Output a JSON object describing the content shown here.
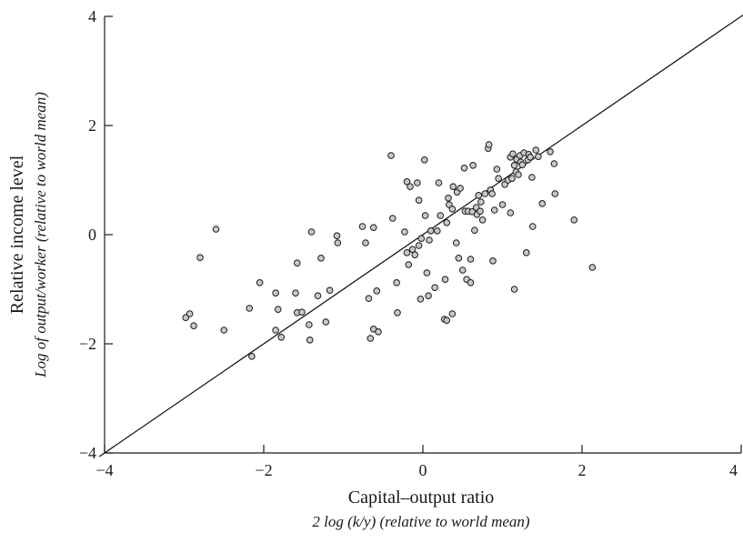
{
  "chart_data": {
    "type": "scatter",
    "xlabel": "Capital–output ratio",
    "xlabel_sub": "2 log (k/y) (relative to world mean)",
    "ylabel": "Relative income level",
    "ylabel_sub": "Log of output/worker (relative to world mean)",
    "xlim": [
      -4,
      4
    ],
    "ylim": [
      -4,
      4
    ],
    "x_ticks": [
      -4,
      -2,
      0,
      2,
      4
    ],
    "y_ticks": [
      -4,
      -2,
      0,
      2,
      4
    ],
    "x_tick_labels": [
      "−4",
      "−2",
      "0",
      "2",
      "4"
    ],
    "y_tick_labels": [
      "−4",
      "−2",
      "0",
      "2",
      "4"
    ],
    "grid": false,
    "reference_line": {
      "slope": 1,
      "intercept": 0
    },
    "points": [
      {
        "x": -2.98,
        "y": -1.52
      },
      {
        "x": -2.93,
        "y": -1.45
      },
      {
        "x": -2.88,
        "y": -1.67
      },
      {
        "x": -2.8,
        "y": -0.42
      },
      {
        "x": -2.6,
        "y": 0.1
      },
      {
        "x": -2.5,
        "y": -1.75
      },
      {
        "x": -2.18,
        "y": -1.35
      },
      {
        "x": -2.15,
        "y": -2.23
      },
      {
        "x": -2.05,
        "y": -0.88
      },
      {
        "x": -1.85,
        "y": -1.07
      },
      {
        "x": -1.85,
        "y": -1.75
      },
      {
        "x": -1.82,
        "y": -1.37
      },
      {
        "x": -1.78,
        "y": -1.88
      },
      {
        "x": -1.6,
        "y": -1.07
      },
      {
        "x": -1.58,
        "y": -0.52
      },
      {
        "x": -1.58,
        "y": -1.43
      },
      {
        "x": -1.52,
        "y": -1.42
      },
      {
        "x": -1.43,
        "y": -1.65
      },
      {
        "x": -1.42,
        "y": -1.93
      },
      {
        "x": -1.4,
        "y": 0.05
      },
      {
        "x": -1.32,
        "y": -1.12
      },
      {
        "x": -1.28,
        "y": -0.43
      },
      {
        "x": -1.22,
        "y": -1.6
      },
      {
        "x": -1.17,
        "y": -1.02
      },
      {
        "x": -1.08,
        "y": -0.02
      },
      {
        "x": -1.07,
        "y": -0.15
      },
      {
        "x": -0.76,
        "y": 0.15
      },
      {
        "x": -0.72,
        "y": -0.15
      },
      {
        "x": -0.68,
        "y": -1.17
      },
      {
        "x": -0.66,
        "y": -1.9
      },
      {
        "x": -0.62,
        "y": 0.13
      },
      {
        "x": -0.62,
        "y": -1.73
      },
      {
        "x": -0.58,
        "y": -1.03
      },
      {
        "x": -0.56,
        "y": -1.78
      },
      {
        "x": -0.4,
        "y": 1.45
      },
      {
        "x": -0.38,
        "y": 0.3
      },
      {
        "x": -0.33,
        "y": -0.88
      },
      {
        "x": -0.32,
        "y": -1.43
      },
      {
        "x": -0.23,
        "y": 0.05
      },
      {
        "x": -0.2,
        "y": 0.97
      },
      {
        "x": -0.2,
        "y": -0.33
      },
      {
        "x": -0.18,
        "y": -0.55
      },
      {
        "x": -0.16,
        "y": 0.88
      },
      {
        "x": -0.13,
        "y": -0.27
      },
      {
        "x": -0.1,
        "y": -0.37
      },
      {
        "x": -0.07,
        "y": 0.95
      },
      {
        "x": -0.05,
        "y": 0.63
      },
      {
        "x": -0.05,
        "y": -0.2
      },
      {
        "x": -0.03,
        "y": -1.18
      },
      {
        "x": -0.02,
        "y": -0.07
      },
      {
        "x": 0.02,
        "y": 1.37
      },
      {
        "x": 0.03,
        "y": 0.35
      },
      {
        "x": 0.05,
        "y": -0.7
      },
      {
        "x": 0.07,
        "y": -1.12
      },
      {
        "x": 0.08,
        "y": -0.1
      },
      {
        "x": 0.1,
        "y": 0.07
      },
      {
        "x": 0.15,
        "y": -0.97
      },
      {
        "x": 0.18,
        "y": 0.07
      },
      {
        "x": 0.2,
        "y": 0.95
      },
      {
        "x": 0.22,
        "y": 0.35
      },
      {
        "x": 0.27,
        "y": -1.55
      },
      {
        "x": 0.28,
        "y": -0.82
      },
      {
        "x": 0.3,
        "y": -1.57
      },
      {
        "x": 0.3,
        "y": 0.22
      },
      {
        "x": 0.32,
        "y": 0.67
      },
      {
        "x": 0.33,
        "y": 0.55
      },
      {
        "x": 0.37,
        "y": 0.47
      },
      {
        "x": 0.37,
        "y": -1.45
      },
      {
        "x": 0.38,
        "y": 0.88
      },
      {
        "x": 0.42,
        "y": -0.15
      },
      {
        "x": 0.43,
        "y": 0.78
      },
      {
        "x": 0.45,
        "y": -0.43
      },
      {
        "x": 0.47,
        "y": 0.85
      },
      {
        "x": 0.5,
        "y": -0.65
      },
      {
        "x": 0.52,
        "y": 1.22
      },
      {
        "x": 0.53,
        "y": 0.43
      },
      {
        "x": 0.55,
        "y": -0.82
      },
      {
        "x": 0.57,
        "y": 0.43
      },
      {
        "x": 0.6,
        "y": -0.88
      },
      {
        "x": 0.6,
        "y": -0.45
      },
      {
        "x": 0.62,
        "y": 0.42
      },
      {
        "x": 0.63,
        "y": 1.27
      },
      {
        "x": 0.65,
        "y": 0.08
      },
      {
        "x": 0.67,
        "y": 0.5
      },
      {
        "x": 0.68,
        "y": 0.37
      },
      {
        "x": 0.7,
        "y": 0.72
      },
      {
        "x": 0.72,
        "y": 0.43
      },
      {
        "x": 0.73,
        "y": 0.6
      },
      {
        "x": 0.75,
        "y": 0.27
      },
      {
        "x": 0.78,
        "y": 0.75
      },
      {
        "x": 0.82,
        "y": 1.58
      },
      {
        "x": 0.83,
        "y": 1.65
      },
      {
        "x": 0.85,
        "y": 0.82
      },
      {
        "x": 0.87,
        "y": 0.75
      },
      {
        "x": 0.88,
        "y": -0.48
      },
      {
        "x": 0.9,
        "y": 0.45
      },
      {
        "x": 0.93,
        "y": 1.2
      },
      {
        "x": 0.95,
        "y": 1.03
      },
      {
        "x": 1.0,
        "y": 0.55
      },
      {
        "x": 1.03,
        "y": 0.92
      },
      {
        "x": 1.07,
        "y": 1.0
      },
      {
        "x": 1.1,
        "y": 1.42
      },
      {
        "x": 1.1,
        "y": 0.4
      },
      {
        "x": 1.12,
        "y": 1.03
      },
      {
        "x": 1.13,
        "y": 1.48
      },
      {
        "x": 1.15,
        "y": 1.27
      },
      {
        "x": 1.15,
        "y": -1.0
      },
      {
        "x": 1.17,
        "y": 1.15
      },
      {
        "x": 1.18,
        "y": 1.38
      },
      {
        "x": 1.2,
        "y": 1.1
      },
      {
        "x": 1.22,
        "y": 1.45
      },
      {
        "x": 1.23,
        "y": 1.33
      },
      {
        "x": 1.25,
        "y": 1.28
      },
      {
        "x": 1.27,
        "y": 1.5
      },
      {
        "x": 1.3,
        "y": -0.33
      },
      {
        "x": 1.32,
        "y": 1.37
      },
      {
        "x": 1.33,
        "y": 1.47
      },
      {
        "x": 1.35,
        "y": 1.42
      },
      {
        "x": 1.37,
        "y": 1.05
      },
      {
        "x": 1.38,
        "y": 0.15
      },
      {
        "x": 1.42,
        "y": 1.55
      },
      {
        "x": 1.45,
        "y": 1.43
      },
      {
        "x": 1.5,
        "y": 0.57
      },
      {
        "x": 1.6,
        "y": 1.52
      },
      {
        "x": 1.65,
        "y": 1.3
      },
      {
        "x": 1.66,
        "y": 0.75
      },
      {
        "x": 1.9,
        "y": 0.27
      },
      {
        "x": 2.13,
        "y": -0.6
      }
    ]
  }
}
